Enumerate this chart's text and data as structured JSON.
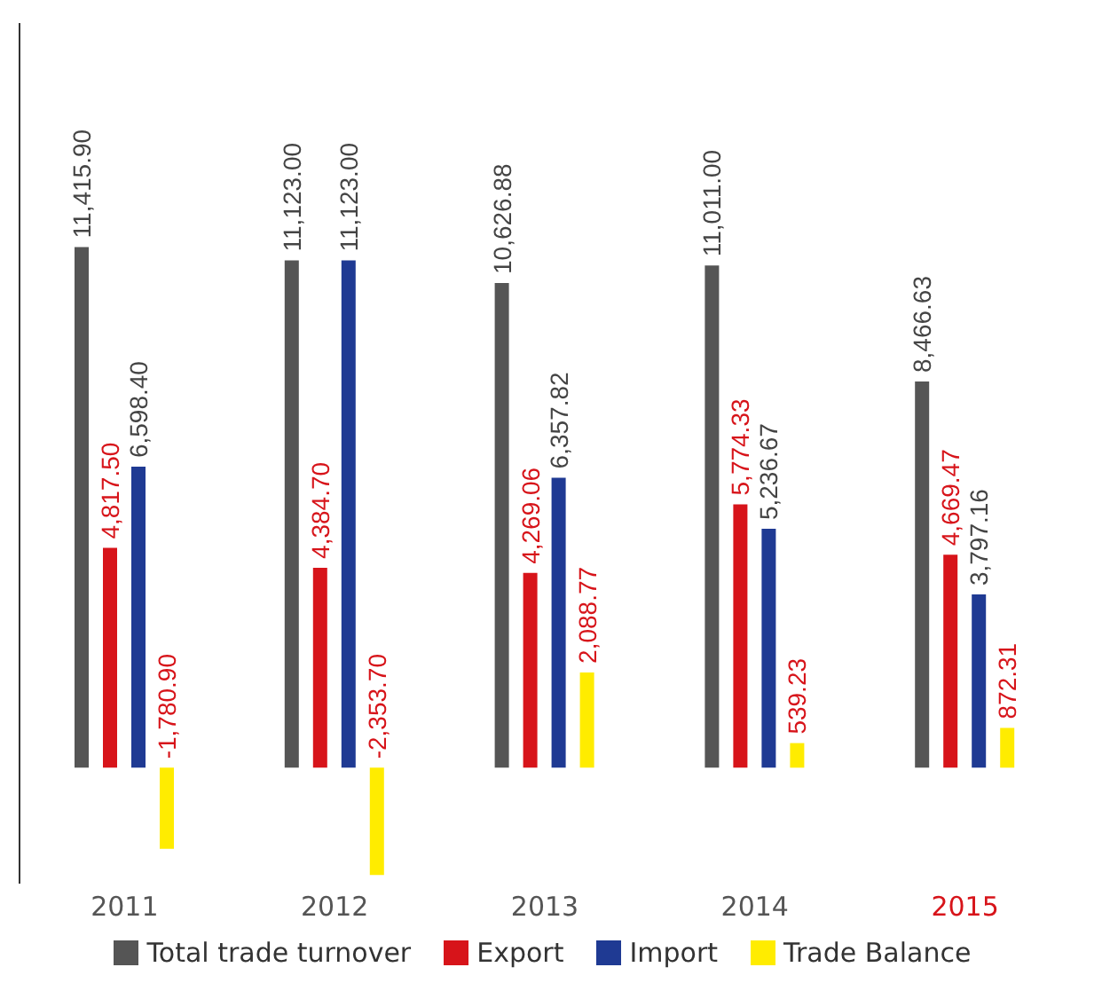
{
  "chart_data": {
    "type": "bar",
    "categories": [
      "2011",
      "2012",
      "2013",
      "2014",
      "2015"
    ],
    "series": [
      {
        "name": "Total trade turnover",
        "color": "#555555",
        "values": [
          11415.9,
          11123.0,
          10626.88,
          11011.0,
          8466.63
        ],
        "value_labels": [
          "11,415.90",
          "11,123.00",
          "10,626.88",
          "11,011.00",
          "8,466.63"
        ]
      },
      {
        "name": "Export",
        "color": "#d7141a",
        "values": [
          4817.5,
          4384.7,
          4269.06,
          5774.33,
          4669.47
        ],
        "value_labels": [
          "4,817.50",
          "4,384.70",
          "4,269.06",
          "5,774.33",
          "4,669.47"
        ]
      },
      {
        "name": "Import",
        "color": "#1f3a93",
        "values": [
          6598.4,
          11123.0,
          6357.82,
          5236.67,
          3797.16
        ],
        "value_labels": [
          "6,598.40",
          "11,123.00",
          "6,357.82",
          "5,236.67",
          "3,797.16"
        ]
      },
      {
        "name": "Trade Balance",
        "color": "#ffec00",
        "values": [
          -1780.9,
          -2353.7,
          2088.77,
          539.23,
          872.31
        ],
        "value_labels": [
          "-1,780.90",
          "-2,353.70",
          "2,088.77",
          "539.23",
          "872.31"
        ]
      }
    ],
    "tick_labels": "x",
    "grid": false,
    "legend": "bottom"
  }
}
